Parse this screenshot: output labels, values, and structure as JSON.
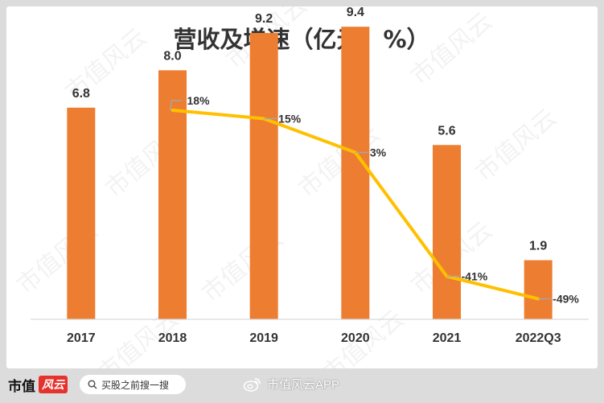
{
  "chart_data": {
    "type": "bar",
    "title": "营收及增速（亿元，%）",
    "categories": [
      "2017",
      "2018",
      "2019",
      "2020",
      "2021",
      "2022Q3"
    ],
    "series": [
      {
        "values": [
          6.8,
          8.0,
          9.2,
          9.4,
          5.6,
          1.9
        ],
        "labels": [
          "6.8",
          "8.0",
          "9.2",
          "9.4",
          "5.6",
          "1.9"
        ],
        "chart": "bar",
        "color": "#ed7d31"
      },
      {
        "values": [
          null,
          18,
          15,
          3,
          -41,
          -49
        ],
        "labels": [
          "",
          "18%",
          "15%",
          "3%",
          "-41%",
          "-49%"
        ],
        "chart": "line",
        "color": "#ffc000"
      }
    ],
    "bar_ylim": [
      0,
      10
    ],
    "line_ylim": [
      -60,
      30
    ],
    "grid": false,
    "legend": "none"
  },
  "watermark": "市值风云",
  "footer": {
    "brand": "市值",
    "brand_logo": "风云",
    "search_label": "买股之前搜一搜",
    "weibo_label": "市值风云APP"
  },
  "colors": {
    "bar": "#ed7d31",
    "line": "#ffc000",
    "background": "#dcdcdc",
    "leader": "#a6a6a6"
  }
}
